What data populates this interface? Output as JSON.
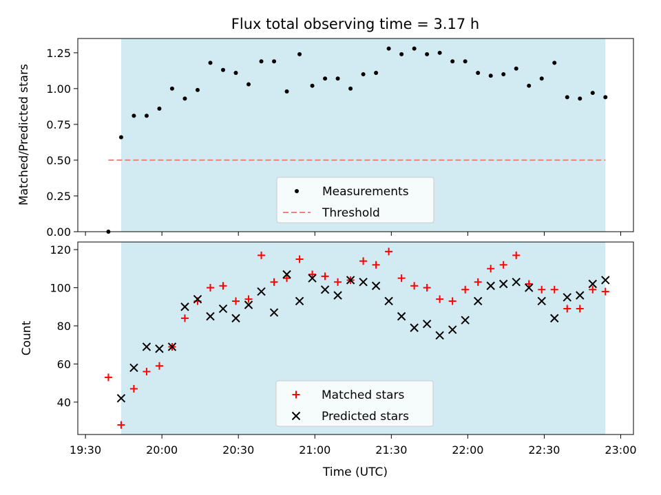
{
  "chart_data": [
    {
      "type": "scatter",
      "title": "Flux total observing time = 3.17 h",
      "xlabel": "",
      "ylabel": "Matched/Predicted stars",
      "x_unit": "time (UTC, HH:MM)",
      "xlim": [
        "19:27",
        "23:05"
      ],
      "ylim": [
        0,
        1.35
      ],
      "x_ticks": [
        "19:30",
        "20:00",
        "20:30",
        "21:00",
        "21:30",
        "22:00",
        "22:30",
        "23:00"
      ],
      "y_ticks": [
        "0.00",
        "0.25",
        "0.50",
        "0.75",
        "1.00",
        "1.25"
      ],
      "shaded_span": [
        "19:44",
        "22:54"
      ],
      "shade_color": "#add8e6",
      "legend": {
        "placement": "lower-center",
        "entries": [
          "Measurements",
          "Threshold"
        ]
      },
      "series": [
        {
          "name": "Measurements",
          "color": "#000000",
          "marker": "dot",
          "points": [
            [
              "19:39",
              0.0
            ],
            [
              "19:44",
              0.66
            ],
            [
              "19:49",
              0.81
            ],
            [
              "19:54",
              0.81
            ],
            [
              "19:59",
              0.86
            ],
            [
              "20:04",
              1.0
            ],
            [
              "20:09",
              0.93
            ],
            [
              "20:14",
              0.99
            ],
            [
              "20:19",
              1.18
            ],
            [
              "20:24",
              1.13
            ],
            [
              "20:29",
              1.11
            ],
            [
              "20:34",
              1.03
            ],
            [
              "20:39",
              1.19
            ],
            [
              "20:44",
              1.19
            ],
            [
              "20:49",
              0.98
            ],
            [
              "20:54",
              1.24
            ],
            [
              "20:59",
              1.02
            ],
            [
              "21:04",
              1.07
            ],
            [
              "21:09",
              1.07
            ],
            [
              "21:14",
              1.0
            ],
            [
              "21:19",
              1.1
            ],
            [
              "21:24",
              1.11
            ],
            [
              "21:29",
              1.28
            ],
            [
              "21:34",
              1.24
            ],
            [
              "21:39",
              1.28
            ],
            [
              "21:44",
              1.24
            ],
            [
              "21:49",
              1.25
            ],
            [
              "21:54",
              1.19
            ],
            [
              "21:59",
              1.19
            ],
            [
              "22:04",
              1.11
            ],
            [
              "22:09",
              1.09
            ],
            [
              "22:14",
              1.1
            ],
            [
              "22:19",
              1.14
            ],
            [
              "22:24",
              1.02
            ],
            [
              "22:29",
              1.07
            ],
            [
              "22:34",
              1.18
            ],
            [
              "22:39",
              0.94
            ],
            [
              "22:44",
              0.93
            ],
            [
              "22:49",
              0.97
            ],
            [
              "22:54",
              0.94
            ]
          ]
        },
        {
          "name": "Threshold",
          "color": "#f08080",
          "style": "dashed",
          "x_range": [
            "19:39",
            "22:54"
          ],
          "y": 0.5
        }
      ]
    },
    {
      "type": "scatter",
      "title": "",
      "xlabel": "Time (UTC)",
      "ylabel": "Count",
      "x_unit": "time (UTC, HH:MM)",
      "xlim": [
        "19:27",
        "23:05"
      ],
      "ylim": [
        23,
        124
      ],
      "x_ticks": [
        "19:30",
        "20:00",
        "20:30",
        "21:00",
        "21:30",
        "22:00",
        "22:30",
        "23:00"
      ],
      "y_ticks": [
        "40",
        "60",
        "80",
        "100",
        "120"
      ],
      "shaded_span": [
        "19:44",
        "22:54"
      ],
      "shade_color": "#add8e6",
      "legend": {
        "placement": "lower-center",
        "entries": [
          "Matched stars",
          "Predicted stars"
        ]
      },
      "series": [
        {
          "name": "Matched stars",
          "color": "#ff0000",
          "marker": "plus",
          "points": [
            [
              "19:39",
              53
            ],
            [
              "19:44",
              28
            ],
            [
              "19:49",
              47
            ],
            [
              "19:54",
              56
            ],
            [
              "19:59",
              59
            ],
            [
              "20:04",
              69
            ],
            [
              "20:09",
              84
            ],
            [
              "20:14",
              93
            ],
            [
              "20:19",
              100
            ],
            [
              "20:24",
              101
            ],
            [
              "20:29",
              93
            ],
            [
              "20:34",
              94
            ],
            [
              "20:39",
              117
            ],
            [
              "20:44",
              103
            ],
            [
              "20:49",
              105
            ],
            [
              "20:54",
              115
            ],
            [
              "20:59",
              107
            ],
            [
              "21:04",
              106
            ],
            [
              "21:09",
              103
            ],
            [
              "21:14",
              104
            ],
            [
              "21:19",
              114
            ],
            [
              "21:24",
              112
            ],
            [
              "21:29",
              119
            ],
            [
              "21:34",
              105
            ],
            [
              "21:39",
              101
            ],
            [
              "21:44",
              100
            ],
            [
              "21:49",
              94
            ],
            [
              "21:54",
              93
            ],
            [
              "21:59",
              99
            ],
            [
              "22:04",
              103
            ],
            [
              "22:09",
              110
            ],
            [
              "22:14",
              112
            ],
            [
              "22:19",
              117
            ],
            [
              "22:24",
              102
            ],
            [
              "22:29",
              99
            ],
            [
              "22:34",
              99
            ],
            [
              "22:39",
              89
            ],
            [
              "22:44",
              89
            ],
            [
              "22:49",
              99
            ],
            [
              "22:54",
              98
            ]
          ]
        },
        {
          "name": "Predicted stars",
          "color": "#000000",
          "marker": "x",
          "points": [
            [
              "19:44",
              42
            ],
            [
              "19:49",
              58
            ],
            [
              "19:54",
              69
            ],
            [
              "19:59",
              68
            ],
            [
              "20:04",
              69
            ],
            [
              "20:09",
              90
            ],
            [
              "20:14",
              94
            ],
            [
              "20:19",
              85
            ],
            [
              "20:24",
              89
            ],
            [
              "20:29",
              84
            ],
            [
              "20:34",
              91
            ],
            [
              "20:39",
              98
            ],
            [
              "20:44",
              87
            ],
            [
              "20:49",
              107
            ],
            [
              "20:54",
              93
            ],
            [
              "20:59",
              105
            ],
            [
              "21:04",
              99
            ],
            [
              "21:09",
              96
            ],
            [
              "21:14",
              104
            ],
            [
              "21:19",
              103
            ],
            [
              "21:24",
              101
            ],
            [
              "21:29",
              93
            ],
            [
              "21:34",
              85
            ],
            [
              "21:39",
              79
            ],
            [
              "21:44",
              81
            ],
            [
              "21:49",
              75
            ],
            [
              "21:54",
              78
            ],
            [
              "21:59",
              83
            ],
            [
              "22:04",
              93
            ],
            [
              "22:09",
              101
            ],
            [
              "22:14",
              102
            ],
            [
              "22:19",
              103
            ],
            [
              "22:24",
              100
            ],
            [
              "22:29",
              93
            ],
            [
              "22:34",
              84
            ],
            [
              "22:39",
              95
            ],
            [
              "22:44",
              96
            ],
            [
              "22:49",
              102
            ],
            [
              "22:54",
              104
            ]
          ]
        }
      ]
    }
  ]
}
